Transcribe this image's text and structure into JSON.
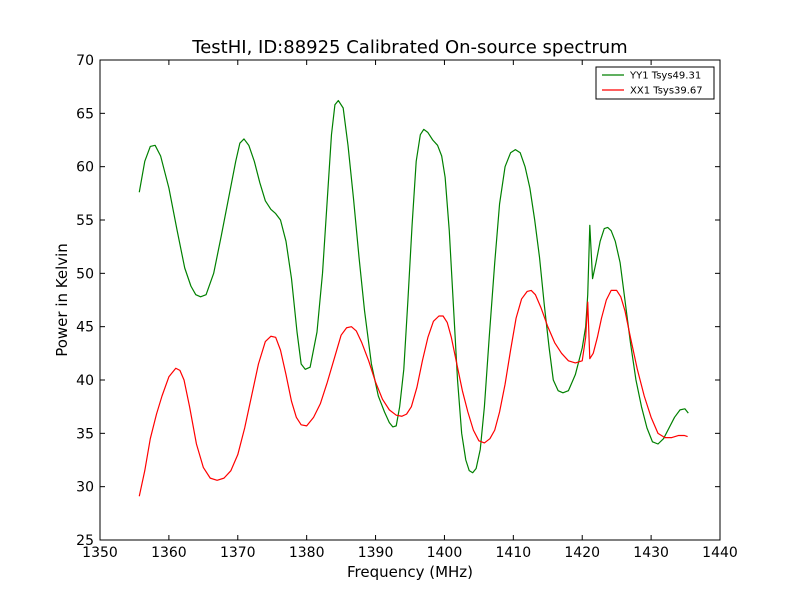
{
  "chart_data": {
    "type": "line",
    "title": "TestHI, ID:88925 Calibrated On-source spectrum",
    "xlabel": "Frequency (MHz)",
    "ylabel": "Power in Kelvin",
    "xlim": [
      1350,
      1440
    ],
    "ylim": [
      25,
      70
    ],
    "xticks": [
      1350,
      1360,
      1370,
      1380,
      1390,
      1400,
      1410,
      1420,
      1430,
      1440
    ],
    "yticks": [
      25,
      30,
      35,
      40,
      45,
      50,
      55,
      60,
      65,
      70
    ],
    "grid": false,
    "legend_position": "top-right",
    "series": [
      {
        "name": "YY1 Tsys49.31",
        "color": "#008000",
        "x": [
          1355.7,
          1356.5,
          1357.3,
          1358.0,
          1358.8,
          1360.0,
          1361.2,
          1362.3,
          1363.2,
          1363.9,
          1364.6,
          1365.4,
          1366.5,
          1367.6,
          1368.8,
          1369.7,
          1370.3,
          1370.9,
          1371.6,
          1372.4,
          1373.2,
          1374.0,
          1374.8,
          1375.5,
          1376.2,
          1377.0,
          1377.8,
          1378.6,
          1379.2,
          1379.8,
          1380.5,
          1381.5,
          1382.3,
          1383.0,
          1383.6,
          1384.1,
          1384.6,
          1385.3,
          1386.0,
          1386.8,
          1387.6,
          1388.4,
          1389.4,
          1390.4,
          1391.3,
          1392.0,
          1392.5,
          1393.0,
          1393.5,
          1394.1,
          1394.7,
          1395.3,
          1395.9,
          1396.5,
          1397.0,
          1397.6,
          1398.3,
          1399.0,
          1399.6,
          1400.1,
          1400.7,
          1401.3,
          1401.9,
          1402.5,
          1403.1,
          1403.6,
          1404.1,
          1404.6,
          1405.2,
          1405.8,
          1406.5,
          1407.3,
          1408.0,
          1408.8,
          1409.6,
          1410.3,
          1411.0,
          1411.7,
          1412.4,
          1413.1,
          1413.8,
          1414.5,
          1415.2,
          1415.8,
          1416.5,
          1417.2,
          1418.0,
          1419.0,
          1420.0,
          1420.5,
          1420.8,
          1421.1,
          1421.5,
          1422.0,
          1422.6,
          1423.2,
          1423.7,
          1424.2,
          1424.8,
          1425.5,
          1426.2,
          1427.0,
          1427.8,
          1428.6,
          1429.4,
          1430.2,
          1431.0,
          1431.8,
          1432.6,
          1433.4,
          1434.2,
          1434.9,
          1435.4
        ],
        "values": [
          57.6,
          60.5,
          61.9,
          62.0,
          61.0,
          58.0,
          54.0,
          50.5,
          48.8,
          48.0,
          47.8,
          48.0,
          50.0,
          53.5,
          57.5,
          60.5,
          62.2,
          62.6,
          62.0,
          60.5,
          58.5,
          56.8,
          56.0,
          55.6,
          55.0,
          53.0,
          49.5,
          44.5,
          41.5,
          41.0,
          41.2,
          44.5,
          50.0,
          57.0,
          63.0,
          65.8,
          66.2,
          65.5,
          62.0,
          57.0,
          51.5,
          46.5,
          41.5,
          38.5,
          37.0,
          36.0,
          35.6,
          35.7,
          37.5,
          41.0,
          47.5,
          54.5,
          60.5,
          63.0,
          63.5,
          63.2,
          62.5,
          62.0,
          61.0,
          59.0,
          54.0,
          47.0,
          40.0,
          35.0,
          32.5,
          31.5,
          31.3,
          31.7,
          33.5,
          37.5,
          44.0,
          51.0,
          56.5,
          60.0,
          61.3,
          61.6,
          61.3,
          60.0,
          58.0,
          55.0,
          51.5,
          47.0,
          43.0,
          40.0,
          39.0,
          38.8,
          39.0,
          40.5,
          43.0,
          45.0,
          48.0,
          54.5,
          49.5,
          51.0,
          53.0,
          54.2,
          54.3,
          54.0,
          53.0,
          51.0,
          47.5,
          43.5,
          40.0,
          37.5,
          35.5,
          34.2,
          34.0,
          34.5,
          35.5,
          36.5,
          37.2,
          37.3,
          36.9
        ]
      },
      {
        "name": "XX1 Tsys39.67",
        "color": "#ff0000",
        "x": [
          1355.7,
          1356.5,
          1357.3,
          1358.2,
          1359.0,
          1360.0,
          1361.0,
          1361.6,
          1362.2,
          1363.0,
          1364.0,
          1365.0,
          1366.0,
          1367.0,
          1368.0,
          1369.0,
          1370.0,
          1371.0,
          1372.0,
          1373.0,
          1374.0,
          1374.8,
          1375.5,
          1376.2,
          1377.0,
          1377.8,
          1378.5,
          1379.2,
          1380.0,
          1381.0,
          1382.0,
          1383.0,
          1384.0,
          1385.0,
          1385.8,
          1386.5,
          1387.2,
          1388.0,
          1389.0,
          1390.0,
          1391.0,
          1392.0,
          1393.0,
          1393.8,
          1394.5,
          1395.2,
          1396.0,
          1396.8,
          1397.6,
          1398.4,
          1399.2,
          1399.8,
          1400.4,
          1401.0,
          1401.8,
          1402.6,
          1403.4,
          1404.2,
          1405.0,
          1405.8,
          1406.6,
          1407.3,
          1408.0,
          1408.8,
          1409.6,
          1410.4,
          1411.2,
          1412.0,
          1412.6,
          1413.2,
          1414.0,
          1415.0,
          1416.0,
          1417.0,
          1418.0,
          1419.0,
          1420.0,
          1420.5,
          1420.8,
          1421.1,
          1421.6,
          1422.2,
          1422.8,
          1423.5,
          1424.2,
          1425.0,
          1425.6,
          1426.2,
          1427.0,
          1428.0,
          1429.0,
          1430.0,
          1431.0,
          1432.0,
          1433.0,
          1434.0,
          1434.8,
          1435.3
        ],
        "values": [
          29.1,
          31.5,
          34.5,
          36.8,
          38.5,
          40.3,
          41.1,
          40.9,
          40.0,
          37.5,
          34.0,
          31.8,
          30.8,
          30.6,
          30.8,
          31.5,
          33.0,
          35.5,
          38.5,
          41.5,
          43.6,
          44.1,
          44.0,
          42.8,
          40.5,
          38.0,
          36.5,
          35.8,
          35.7,
          36.5,
          37.8,
          39.8,
          42.0,
          44.2,
          44.9,
          45.0,
          44.6,
          43.5,
          41.8,
          39.8,
          38.2,
          37.2,
          36.7,
          36.6,
          36.8,
          37.5,
          39.3,
          41.8,
          44.0,
          45.5,
          46.0,
          46.0,
          45.4,
          44.0,
          41.5,
          39.0,
          37.0,
          35.3,
          34.3,
          34.1,
          34.5,
          35.3,
          37.0,
          39.6,
          42.8,
          45.8,
          47.6,
          48.3,
          48.4,
          48.0,
          46.8,
          45.0,
          43.5,
          42.5,
          41.8,
          41.6,
          41.8,
          44.0,
          47.3,
          42.0,
          42.5,
          44.0,
          45.8,
          47.5,
          48.4,
          48.4,
          47.8,
          46.5,
          44.0,
          41.0,
          38.5,
          36.5,
          35.0,
          34.6,
          34.6,
          34.8,
          34.8,
          34.7
        ]
      }
    ]
  }
}
